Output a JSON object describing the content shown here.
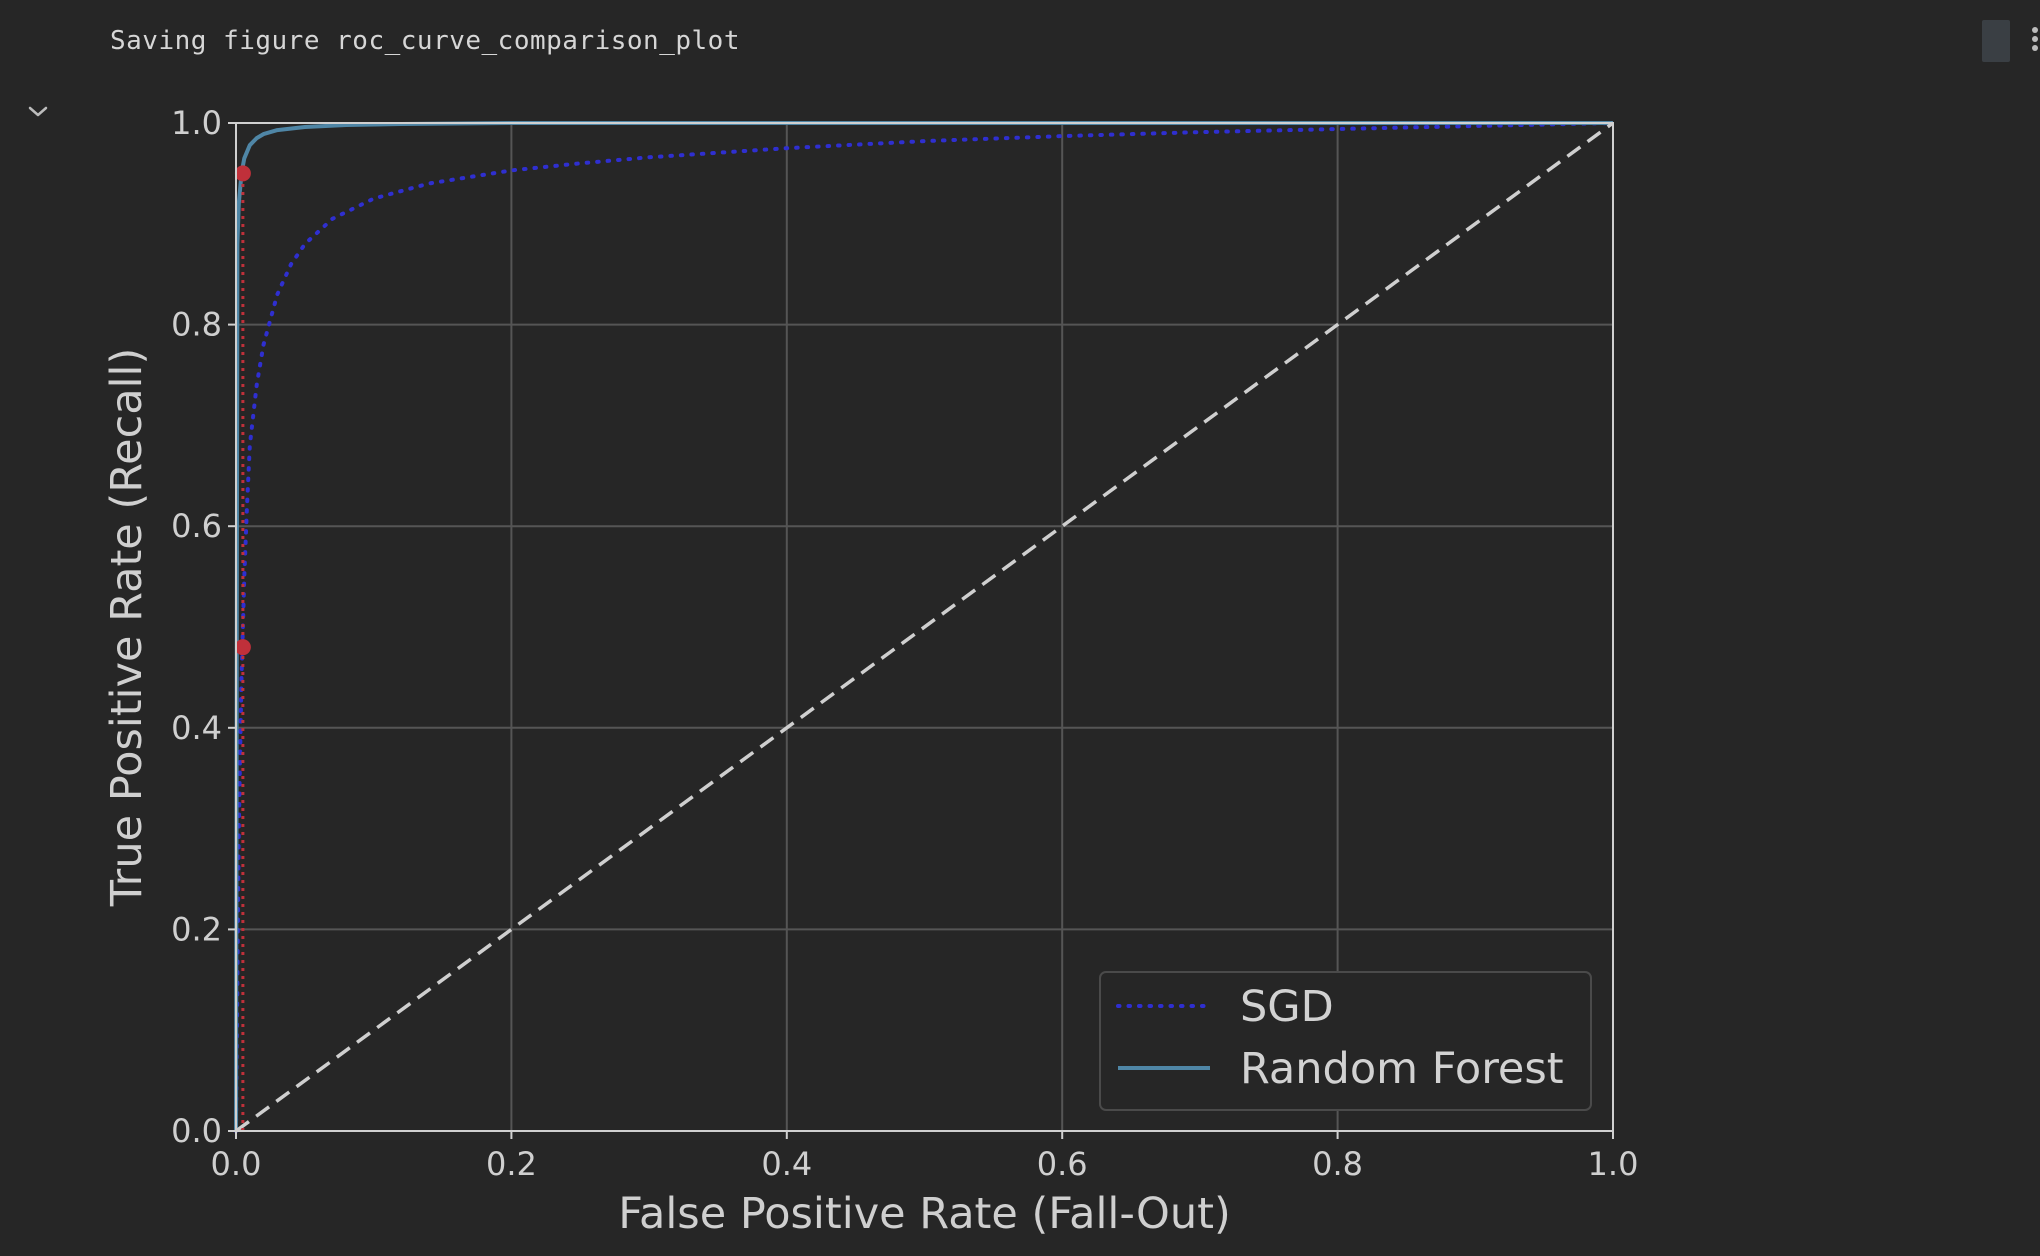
{
  "output": {
    "message": "Saving figure roc_curve_comparison_plot"
  },
  "colors": {
    "background": "#262626",
    "axis_text": "#cfcfcf",
    "grid": "#555555",
    "sgd": "#2f2fd0",
    "random_forest": "#4f86a6",
    "diagonal": "#cfcfcf",
    "threshold_marker": "#c0303a"
  },
  "icons": {
    "collapse": "chevron-down-icon",
    "menu": "vertical-ellipsis-icon"
  },
  "chart_data": {
    "type": "line",
    "xlabel": "False Positive Rate (Fall-Out)",
    "ylabel": "True Positive Rate (Recall)",
    "xlim": [
      0,
      1
    ],
    "ylim": [
      0,
      1
    ],
    "xticks": [
      "0.0",
      "0.2",
      "0.4",
      "0.6",
      "0.8",
      "1.0"
    ],
    "yticks": [
      "0.0",
      "0.2",
      "0.4",
      "0.6",
      "0.8",
      "1.0"
    ],
    "grid": true,
    "legend_position": "bottom-right",
    "series": [
      {
        "name": "SGD",
        "style": "dotted",
        "x": [
          0,
          0.002,
          0.004,
          0.006,
          0.008,
          0.01,
          0.015,
          0.02,
          0.03,
          0.04,
          0.05,
          0.07,
          0.1,
          0.14,
          0.2,
          0.25,
          0.3,
          0.4,
          0.5,
          0.6,
          0.7,
          0.8,
          0.9,
          1.0
        ],
        "y": [
          0,
          0.3,
          0.45,
          0.55,
          0.62,
          0.68,
          0.74,
          0.78,
          0.83,
          0.86,
          0.88,
          0.905,
          0.925,
          0.94,
          0.953,
          0.96,
          0.966,
          0.975,
          0.982,
          0.987,
          0.991,
          0.994,
          0.997,
          1.0
        ]
      },
      {
        "name": "Random Forest",
        "style": "solid",
        "x": [
          0,
          0.001,
          0.002,
          0.004,
          0.006,
          0.01,
          0.015,
          0.02,
          0.03,
          0.05,
          0.08,
          0.12,
          0.2,
          0.4,
          0.6,
          0.8,
          1.0
        ],
        "y": [
          0,
          0.88,
          0.92,
          0.95,
          0.965,
          0.978,
          0.985,
          0.989,
          0.993,
          0.996,
          0.998,
          0.999,
          1.0,
          1.0,
          1.0,
          1.0,
          1.0
        ]
      },
      {
        "style": "dashed",
        "x": [
          0,
          1
        ],
        "y": [
          0,
          1
        ]
      }
    ],
    "threshold_line": {
      "x": 0.005,
      "y_from": 0,
      "y_to": 0.95
    },
    "threshold_points": [
      {
        "x": 0.005,
        "y": 0.95
      },
      {
        "x": 0.005,
        "y": 0.48
      }
    ]
  }
}
